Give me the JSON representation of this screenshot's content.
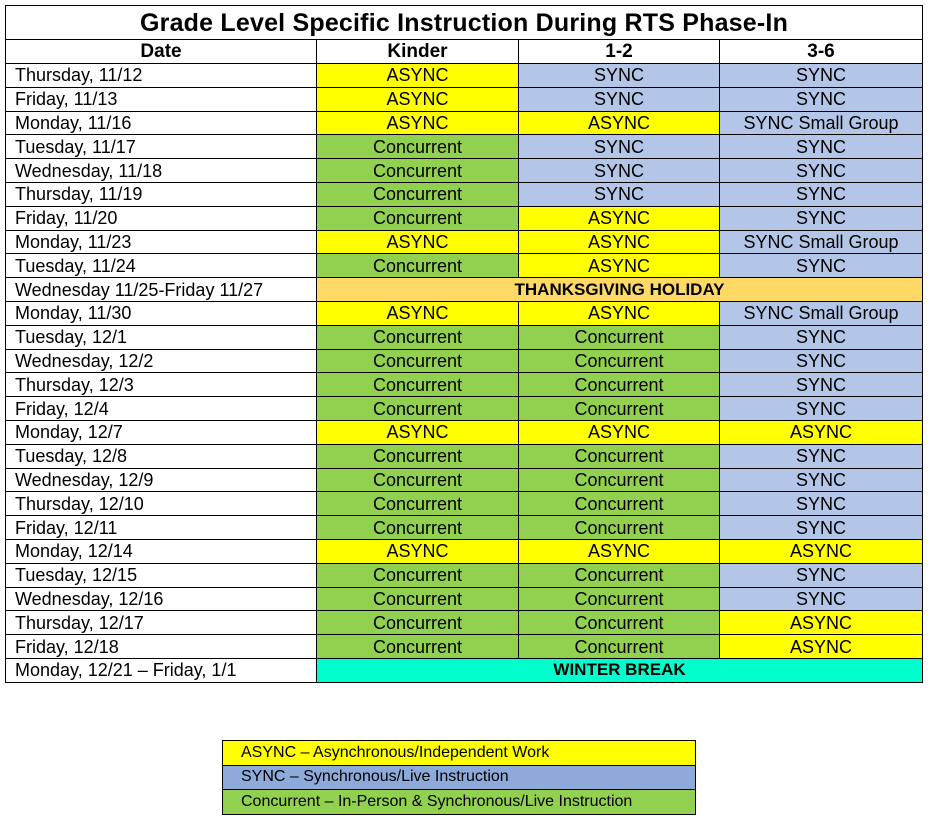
{
  "title": "Grade Level Specific Instruction During RTS Phase-In",
  "headers": [
    "Date",
    "Kinder",
    "1-2",
    "3-6"
  ],
  "colors": {
    "ASYNC": "#ffff00",
    "SYNC": "#b4c6e7",
    "Concurrent": "#92d050",
    "holiday": "#ffd966",
    "break": "#00ffcc"
  },
  "rows": [
    {
      "date": "Thursday, 11/12",
      "cells": [
        "ASYNC",
        "SYNC",
        "SYNC"
      ]
    },
    {
      "date": "Friday, 11/13",
      "cells": [
        "ASYNC",
        "SYNC",
        "SYNC"
      ]
    },
    {
      "date": "Monday, 11/16",
      "cells": [
        "ASYNC",
        "ASYNC",
        "SYNC Small Group"
      ]
    },
    {
      "date": "Tuesday, 11/17",
      "cells": [
        "Concurrent",
        "SYNC",
        "SYNC"
      ]
    },
    {
      "date": "Wednesday, 11/18",
      "cells": [
        "Concurrent",
        "SYNC",
        "SYNC"
      ]
    },
    {
      "date": "Thursday, 11/19",
      "cells": [
        "Concurrent",
        "SYNC",
        "SYNC"
      ]
    },
    {
      "date": "Friday, 11/20",
      "cells": [
        "Concurrent",
        "ASYNC",
        "SYNC"
      ]
    },
    {
      "date": "Monday, 11/23",
      "cells": [
        "ASYNC",
        "ASYNC",
        "SYNC Small Group"
      ]
    },
    {
      "date": "Tuesday, 11/24",
      "cells": [
        "Concurrent",
        "ASYNC",
        "SYNC"
      ]
    },
    {
      "date": "Wednesday 11/25-Friday 11/27",
      "span": "THANKSGIVING HOLIDAY",
      "spanType": "holiday"
    },
    {
      "date": "Monday, 11/30",
      "cells": [
        "ASYNC",
        "ASYNC",
        "SYNC Small Group"
      ]
    },
    {
      "date": "Tuesday, 12/1",
      "cells": [
        "Concurrent",
        "Concurrent",
        "SYNC"
      ]
    },
    {
      "date": "Wednesday, 12/2",
      "cells": [
        "Concurrent",
        "Concurrent",
        "SYNC"
      ]
    },
    {
      "date": "Thursday, 12/3",
      "cells": [
        "Concurrent",
        "Concurrent",
        "SYNC"
      ]
    },
    {
      "date": "Friday, 12/4",
      "cells": [
        "Concurrent",
        "Concurrent",
        "SYNC"
      ]
    },
    {
      "date": "Monday, 12/7",
      "cells": [
        "ASYNC",
        "ASYNC",
        "ASYNC"
      ]
    },
    {
      "date": "Tuesday, 12/8",
      "cells": [
        "Concurrent",
        "Concurrent",
        "SYNC"
      ]
    },
    {
      "date": "Wednesday, 12/9",
      "cells": [
        "Concurrent",
        "Concurrent",
        "SYNC"
      ]
    },
    {
      "date": "Thursday, 12/10",
      "cells": [
        "Concurrent",
        "Concurrent",
        "SYNC"
      ]
    },
    {
      "date": "Friday, 12/11",
      "cells": [
        "Concurrent",
        "Concurrent",
        "SYNC"
      ]
    },
    {
      "date": "Monday, 12/14",
      "cells": [
        "ASYNC",
        "ASYNC",
        "ASYNC"
      ]
    },
    {
      "date": "Tuesday, 12/15",
      "cells": [
        "Concurrent",
        "Concurrent",
        "SYNC"
      ]
    },
    {
      "date": "Wednesday, 12/16",
      "cells": [
        "Concurrent",
        "Concurrent",
        "SYNC"
      ]
    },
    {
      "date": "Thursday, 12/17",
      "cells": [
        "Concurrent",
        "Concurrent",
        "ASYNC"
      ]
    },
    {
      "date": "Friday, 12/18",
      "cells": [
        "Concurrent",
        "Concurrent",
        "ASYNC"
      ]
    },
    {
      "date": "Monday, 12/21 – Friday, 1/1",
      "span": "WINTER BREAK",
      "spanType": "break"
    }
  ],
  "legend": [
    {
      "type": "async",
      "text": "ASYNC – Asynchronous/Independent Work"
    },
    {
      "type": "sync",
      "text": "SYNC – Synchronous/Live Instruction"
    },
    {
      "type": "conc",
      "text": "Concurrent – In-Person & Synchronous/Live Instruction"
    }
  ]
}
